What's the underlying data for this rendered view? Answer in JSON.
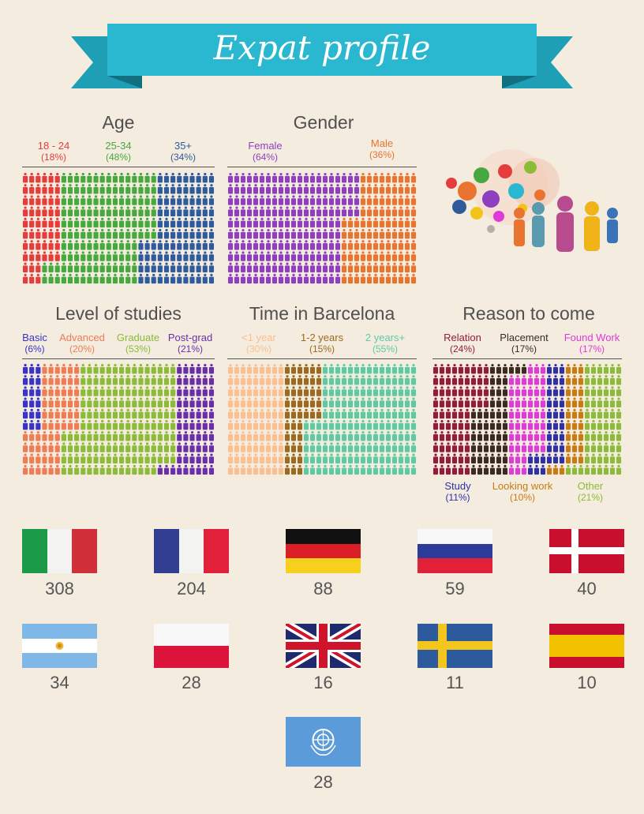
{
  "header": {
    "title": "Expat profile"
  },
  "colors": {
    "banner": "#29b8cf",
    "banner_dark": "#1a8fa3",
    "age": [
      "#e53d3d",
      "#46a83e",
      "#2f5b9c"
    ],
    "gender": [
      "#8d3fbf",
      "#e8742f"
    ],
    "studies": [
      "#3a33c9",
      "#ee7c54",
      "#8cbb3a",
      "#6a2fa8"
    ],
    "time": [
      "#fbbf91",
      "#9a6a1f",
      "#5ecaa4"
    ],
    "reason": [
      "#941b3b",
      "#3a2a1f",
      "#e03ad7",
      "#2f2fa8",
      "#c97b12",
      "#8cbb3a"
    ]
  },
  "chart_data": [
    {
      "type": "pictograph",
      "title": "Age",
      "categories": [
        "18 - 24",
        "25-34",
        "35+"
      ],
      "labels": [
        "(18%)",
        "(48%)",
        "(34%)"
      ],
      "values": [
        18,
        48,
        34
      ]
    },
    {
      "type": "pictograph",
      "title": "Gender",
      "categories": [
        "Female",
        "Male"
      ],
      "labels": [
        "(64%)",
        "(36%)"
      ],
      "values": [
        64,
        36
      ]
    },
    {
      "type": "pictograph",
      "title": "Level of studies",
      "categories": [
        "Basic",
        "Advanced",
        "Graduate",
        "Post-grad"
      ],
      "labels": [
        "(6%)",
        "(20%)",
        "(53%)",
        "(21%)"
      ],
      "values": [
        6,
        20,
        53,
        21
      ]
    },
    {
      "type": "pictograph",
      "title": "Time in Barcelona",
      "categories": [
        "<1 year",
        "1-2 years",
        "2 years+"
      ],
      "labels": [
        "(30%)",
        "(15%)",
        "(55%)"
      ],
      "values": [
        30,
        15,
        55
      ]
    },
    {
      "type": "pictograph",
      "title": "Reason to come",
      "categories": [
        "Relation",
        "Placement",
        "Found Work",
        "Study",
        "Looking work",
        "Other"
      ],
      "labels": [
        "(24%)",
        "(17%)",
        "(17%)",
        "(11%)",
        "(10%)",
        "(21%)"
      ],
      "values": [
        24,
        17,
        17,
        11,
        10,
        21
      ]
    },
    {
      "type": "bar",
      "title": "",
      "categories": [
        "Italy",
        "France",
        "Germany",
        "Russia",
        "Denmark",
        "Argentina",
        "Poland",
        "United Kingdom",
        "Sweden",
        "Spain",
        "United Nations"
      ],
      "values": [
        308,
        204,
        88,
        59,
        40,
        34,
        28,
        16,
        11,
        10,
        28
      ]
    }
  ],
  "countries": [
    {
      "flag": "italy-flag",
      "count": "308"
    },
    {
      "flag": "france-flag",
      "count": "204"
    },
    {
      "flag": "germany-flag",
      "count": "88"
    },
    {
      "flag": "russia-flag",
      "count": "59"
    },
    {
      "flag": "denmark-flag",
      "count": "40"
    },
    {
      "flag": "argentina-flag",
      "count": "34"
    },
    {
      "flag": "poland-flag",
      "count": "28"
    },
    {
      "flag": "uk-flag",
      "count": "16"
    },
    {
      "flag": "sweden-flag",
      "count": "11"
    },
    {
      "flag": "spain-flag",
      "count": "10"
    },
    {
      "flag": "un-flag",
      "count": "28"
    }
  ],
  "illustration": "speech-bubble-people-icon"
}
